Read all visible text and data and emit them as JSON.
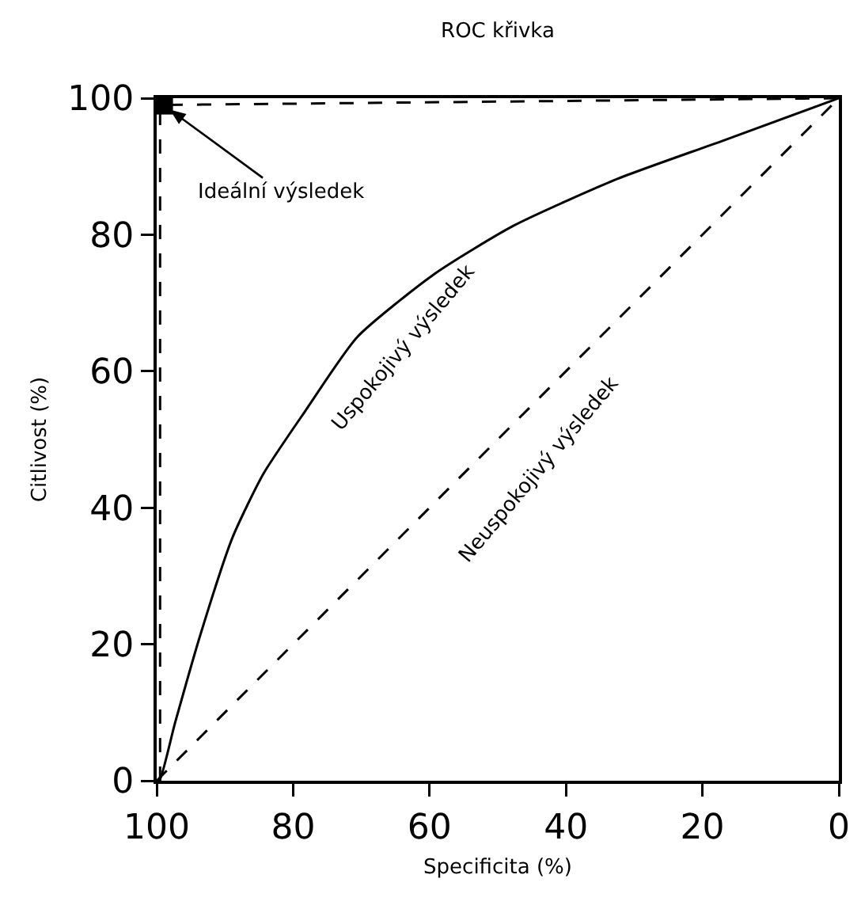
{
  "chart_data": {
    "type": "line",
    "title": "ROC křivka",
    "xlabel": "Specificita (%)",
    "ylabel": "Citlivost (%)",
    "xlim": [
      100,
      0
    ],
    "ylim": [
      0,
      100
    ],
    "xticks": [
      100,
      80,
      60,
      40,
      20,
      0
    ],
    "yticks": [
      0,
      20,
      40,
      60,
      80,
      100
    ],
    "grid": false,
    "series": [
      {
        "color": "#000000",
        "line_style": "dashed",
        "marker": "none",
        "x": [
          100,
          0
        ],
        "values": [
          0,
          100
        ]
      },
      {
        "color": "#000000",
        "line_style": "solid",
        "marker": "none",
        "x": [
          100,
          99.6,
          97.3,
          93.5,
          88.9,
          84.4,
          78.2,
          70.6,
          59.2,
          47.7,
          32.4,
          17.2,
          0
        ],
        "values": [
          0,
          0,
          8.5,
          21.7,
          35.6,
          44.9,
          54.2,
          65,
          74.3,
          81.3,
          88.2,
          93.7,
          100
        ]
      },
      {
        "color": "#000000",
        "line_style": "dashed",
        "marker": "none",
        "x": [
          99.5,
          99.5,
          0
        ],
        "values": [
          0,
          99,
          100
        ]
      },
      {
        "type": "scatter",
        "color": "#000000",
        "marker": "square",
        "x": [
          99
        ],
        "values": [
          99
        ]
      }
    ],
    "annotations": [
      {
        "text": "Ideální výsledek",
        "x": 99,
        "y": 99
      },
      "Uspokojivý výsledek",
      "Neuspokojivý výsledek"
    ]
  }
}
